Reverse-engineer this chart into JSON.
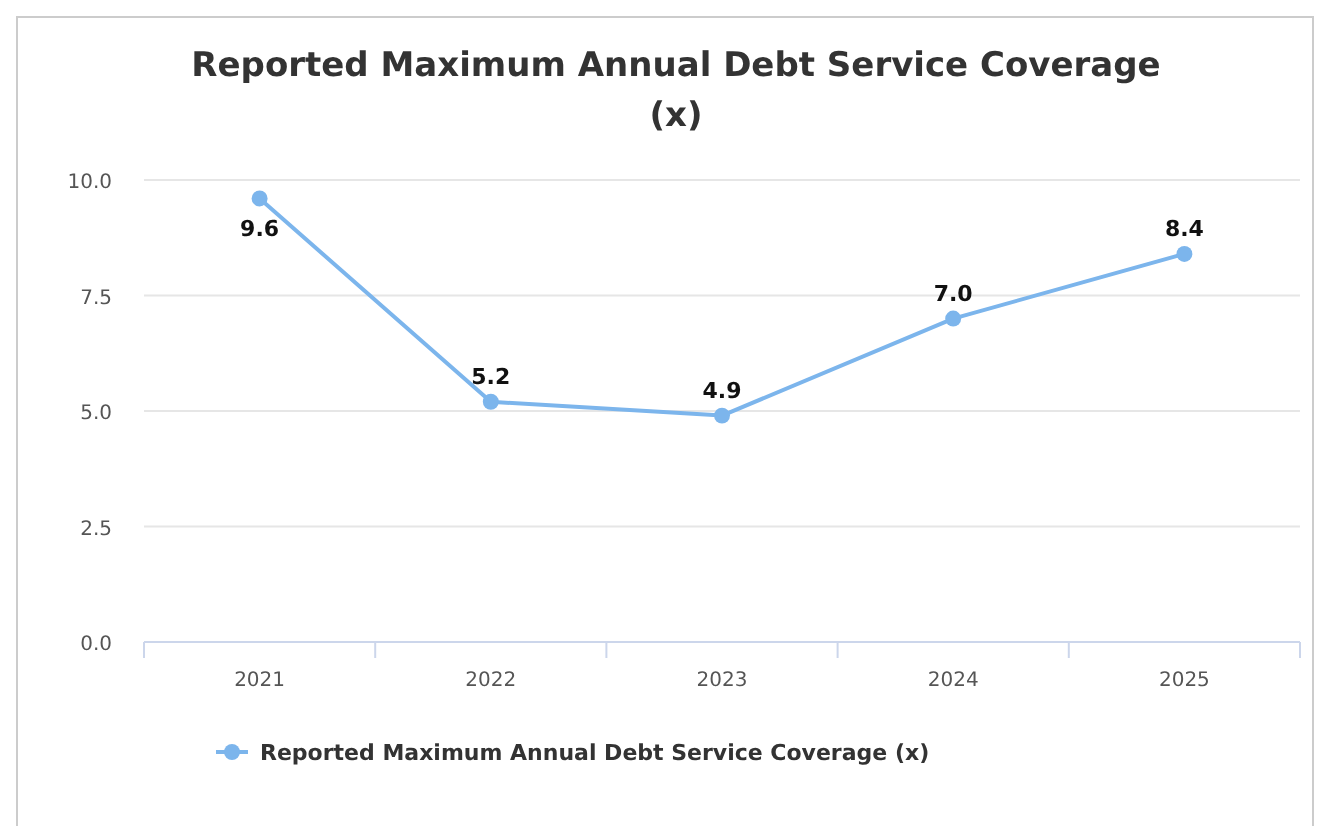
{
  "chart_data": {
    "type": "line",
    "title": "Reported Maximum Annual Debt Service Coverage (x)",
    "categories": [
      "2021",
      "2022",
      "2023",
      "2024",
      "2025"
    ],
    "series": [
      {
        "name": "Reported Maximum Annual Debt Service Coverage (x)",
        "color": "#7cb5ec",
        "values": [
          9.6,
          5.2,
          4.9,
          7.0,
          8.4
        ],
        "value_labels": [
          "9.6",
          "5.2",
          "4.9",
          "7.0",
          "8.4"
        ]
      }
    ],
    "ylim": [
      0,
      10
    ],
    "yticks": [
      {
        "value": 0,
        "label": "0.0"
      },
      {
        "value": 2.5,
        "label": "2.5"
      },
      {
        "value": 5,
        "label": "5.0"
      },
      {
        "value": 7.5,
        "label": "7.5"
      },
      {
        "value": 10,
        "label": "10.0"
      }
    ],
    "grid": "y",
    "legend": "bottom",
    "marker": "circle",
    "line_style": "solid"
  }
}
